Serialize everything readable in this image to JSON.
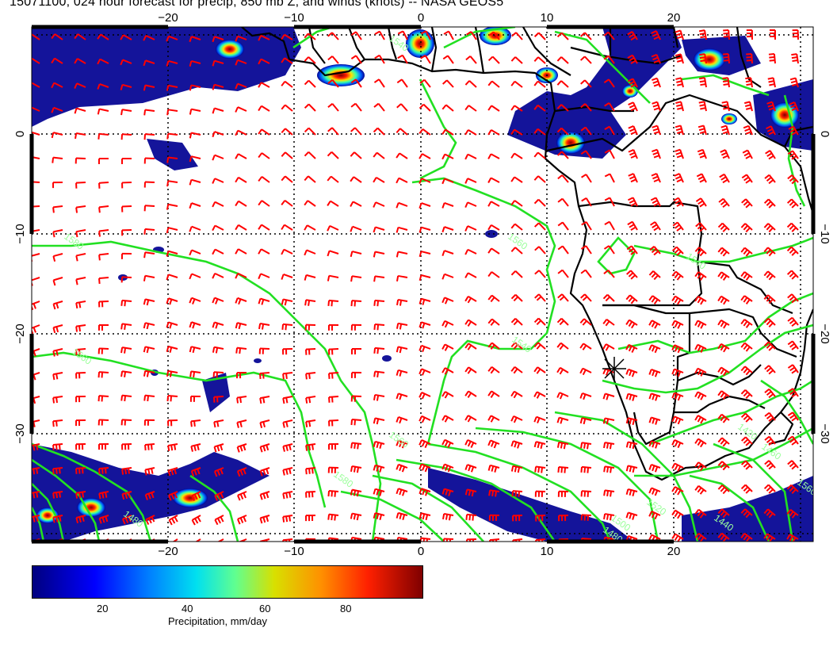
{
  "title": "15071100, 024 hour forecast for precip, 850 mb Z, and winds (knots) -- NASA GEOS5",
  "map": {
    "lon_labels_top": [
      "−20",
      "−10",
      "0",
      "10",
      "20"
    ],
    "lon_labels_bottom": [
      "−20",
      "−10",
      "0",
      "10",
      "20"
    ],
    "lat_labels_left": [
      "0",
      "−10",
      "−20",
      "−30"
    ],
    "lat_labels_right": [
      "0",
      "−10",
      "−20",
      "−30"
    ],
    "contour_labels": [
      "1560",
      "1540",
      "1540",
      "1560",
      "1580",
      "1580",
      "1560",
      "1500",
      "1480",
      "1440",
      "1420",
      "1460",
      "1480",
      "1520",
      "1540",
      "1560"
    ],
    "colors": {
      "contour": "#22e022",
      "wind_barb": "#ff0000",
      "coastline": "#000000",
      "grid": "#000000"
    }
  },
  "colorbar": {
    "ticks": [
      "20",
      "40",
      "60",
      "80"
    ],
    "title": "Precipitation, mm/day",
    "range": [
      0,
      100
    ]
  }
}
